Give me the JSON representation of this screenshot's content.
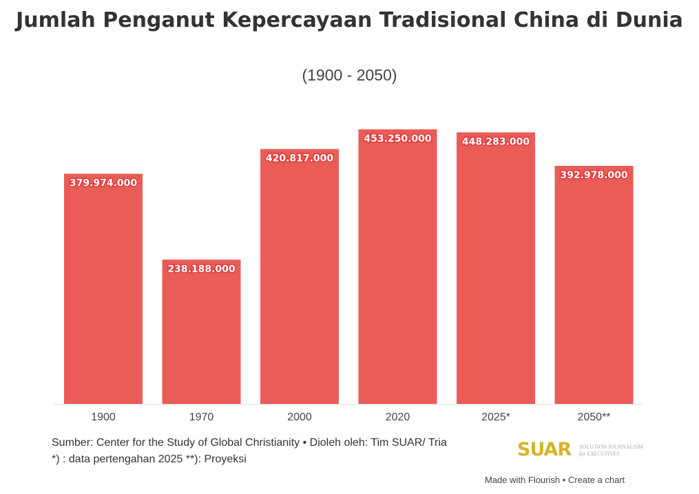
{
  "chart_data": {
    "type": "bar",
    "title": "Jumlah Penganut Kepercayaan Tradisional China di Dunia",
    "subtitle": "(1900 - 2050)",
    "categories": [
      "1900",
      "1970",
      "2000",
      "2020",
      "2025*",
      "2050**"
    ],
    "values": [
      379974000,
      238188000,
      420817000,
      453250000,
      448283000,
      392978000
    ],
    "value_labels": [
      "379.974.000",
      "238.188.000",
      "420.817.000",
      "453.250.000",
      "448.283.000",
      "392.978.000"
    ],
    "xlabel": "",
    "ylabel": "",
    "ylim": [
      0,
      453250000
    ],
    "grid": false,
    "bar_color": "#e95c58"
  },
  "footer": {
    "source": "Sumber: Center for the Study of Global Christianity • Dioleh oleh: Tim SUAR/ Tria",
    "note": "*) : data pertengahan 2025 **): Proyeksi",
    "logo": "SUAR",
    "logo_tag1": "SOLUTION JOURNALISM",
    "logo_tag2": "for EXECUTIVES",
    "made_with": "Made with Flourish",
    "create": "Create a chart"
  }
}
